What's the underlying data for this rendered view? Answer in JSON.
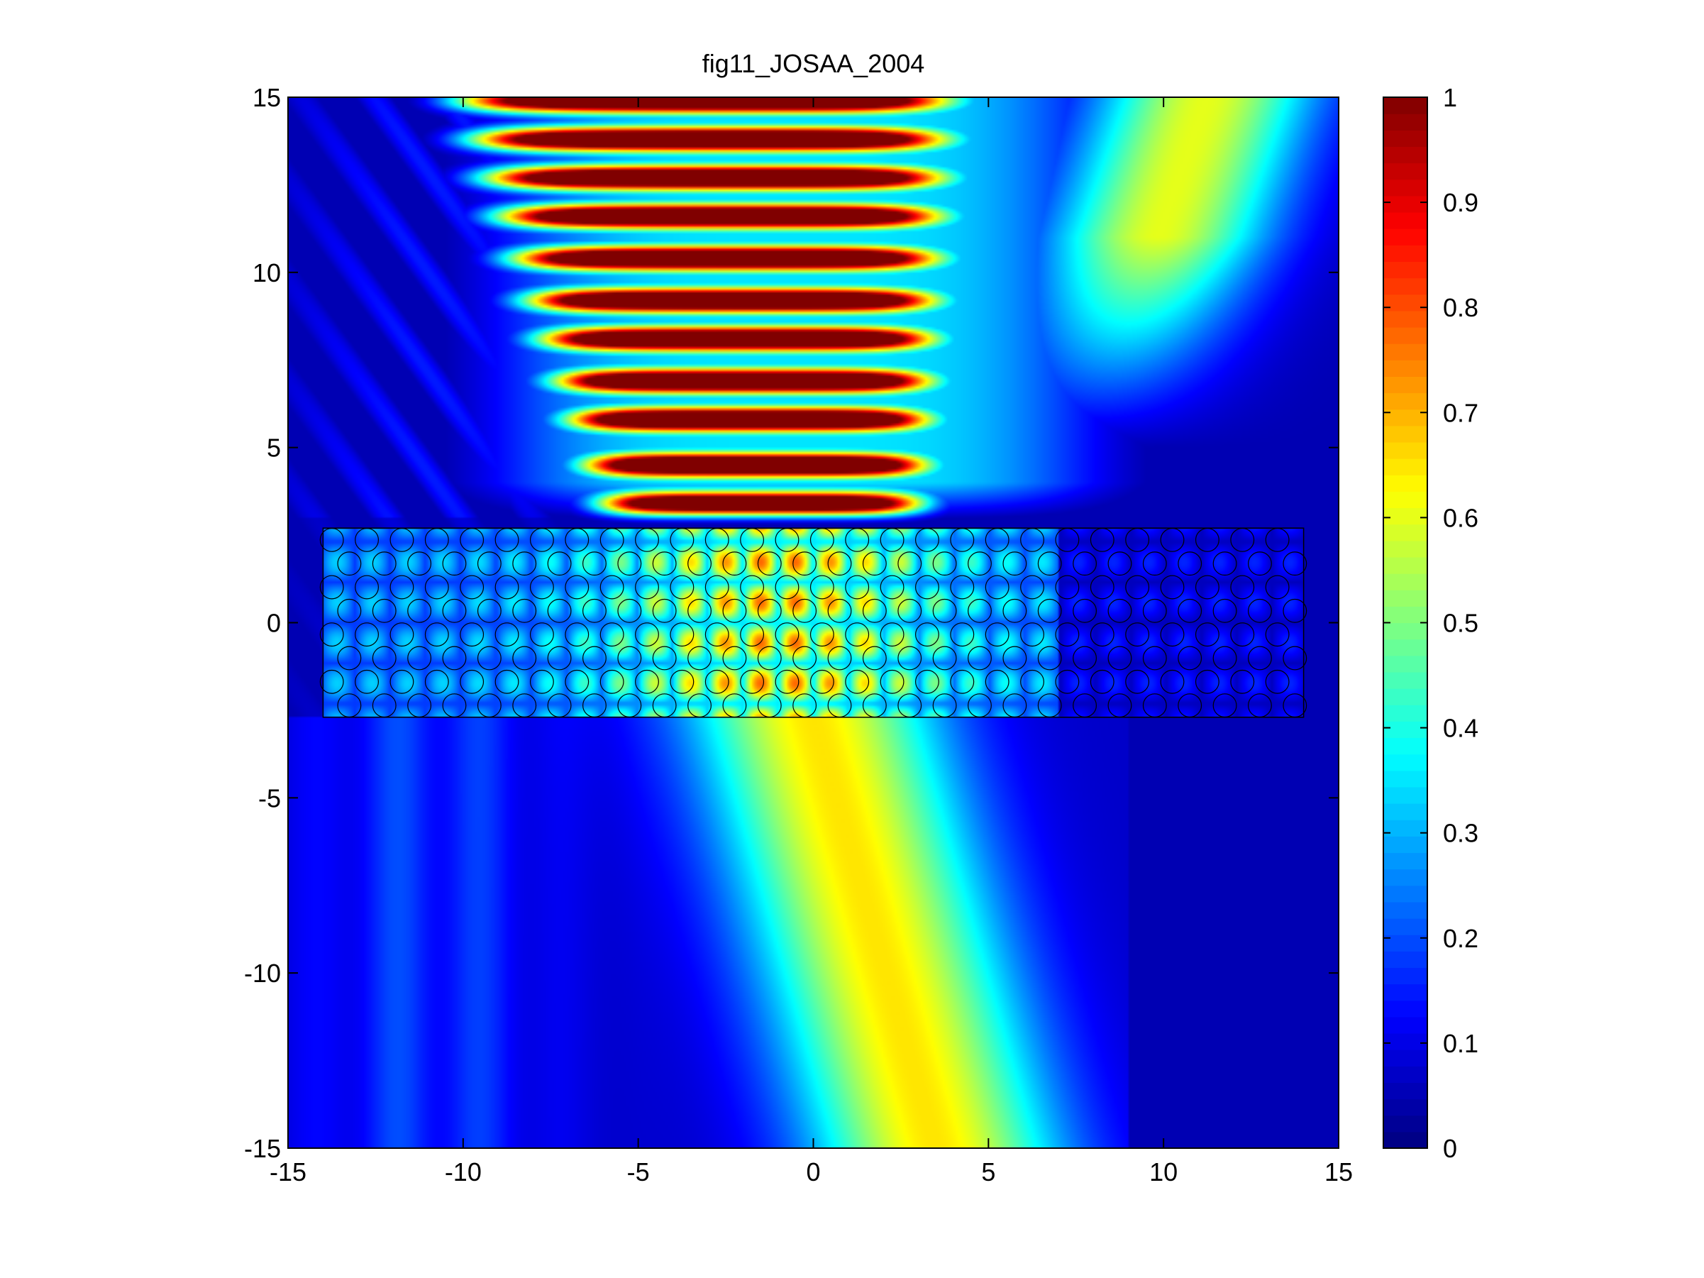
{
  "chart_data": {
    "type": "heatmap",
    "title": "fig11_JOSAA_2004",
    "xlabel": "",
    "ylabel": "",
    "xlim": [
      -15,
      15
    ],
    "ylim": [
      -15,
      15
    ],
    "x_ticks": [
      -15,
      -10,
      -5,
      0,
      5,
      10,
      15
    ],
    "y_ticks": [
      -15,
      -10,
      -5,
      0,
      5,
      10,
      15
    ],
    "x_tick_labels": [
      "-15",
      "-10",
      "-5",
      "0",
      "5",
      "10",
      "15"
    ],
    "y_tick_labels": [
      "-15",
      "-10",
      "-5",
      "0",
      "5",
      "10",
      "15"
    ],
    "colormap": "jet",
    "colorbar": {
      "range": [
        0,
        1
      ],
      "ticks": [
        0,
        0.1,
        0.2,
        0.3,
        0.4,
        0.5,
        0.6,
        0.7,
        0.8,
        0.9,
        1
      ],
      "tick_labels": [
        "0",
        "0.1",
        "0.2",
        "0.3",
        "0.4",
        "0.5",
        "0.6",
        "0.7",
        "0.8",
        "0.9",
        "1"
      ]
    },
    "grid": false,
    "legend": "none",
    "field": {
      "standing_wave_bands_y": [
        3.4,
        4.5,
        5.8,
        6.9,
        8.1,
        9.2,
        10.4,
        11.6,
        12.7,
        13.8,
        14.9
      ],
      "standing_wave_x_range": [
        -9.5,
        9.5
      ],
      "transmitted_beam": {
        "center_top": [
          0,
          -2.7
        ],
        "center_bottom": [
          3.5,
          -15
        ],
        "peak_value": 0.6
      }
    },
    "crystal_slab": {
      "x_range": [
        -14,
        14
      ],
      "y_range": [
        -2.7,
        2.7
      ],
      "rows": 8,
      "columns": 28,
      "lattice": "hexagonal"
    }
  }
}
